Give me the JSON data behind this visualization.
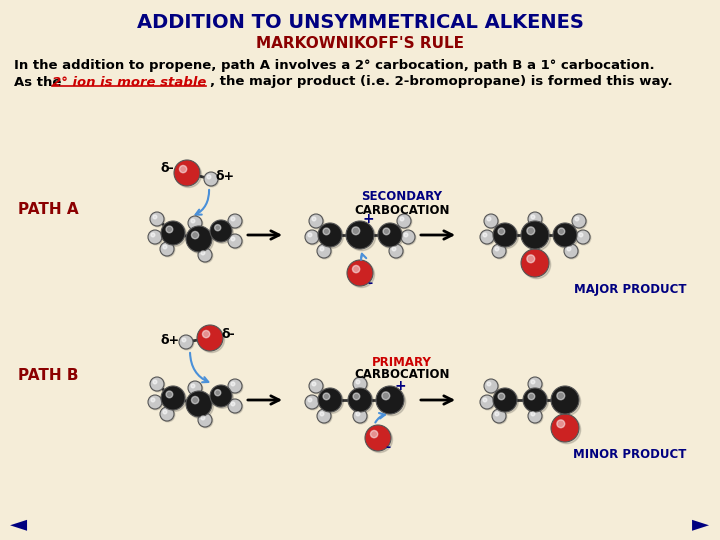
{
  "title": "ADDITION TO UNSYMMETRICAL ALKENES",
  "subtitle": "MARKOWNIKOFF'S RULE",
  "background_color": "#F5EDD8",
  "title_color": "#000080",
  "subtitle_color": "#8B0000",
  "text_color": "#000000",
  "highlight_color": "#CC0000",
  "path_color": "#8B0000",
  "label_color": "#000080",
  "arrow_color": "#4A90D9",
  "line1": "In the addition to propene, path A involves a 2° carbocation, path B a 1° carbocation.",
  "line2_plain1": "As the ",
  "line2_highlight": "2° ion is more stable",
  "line2_plain2": ", the major product (i.e. 2-bromopropane) is formed this way.",
  "path_a_label": "PATH A",
  "path_b_label": "PATH B",
  "secondary_label1": "SECONDARY",
  "secondary_label2": "CARBOCATION",
  "primary_label1": "PRIMARY",
  "primary_label2": "CARBOCATION",
  "major_label": "MAJOR PRODUCT",
  "minor_label": "MINOR PRODUCT",
  "delta_minus": "δ-",
  "delta_plus": "δ+",
  "nav_left": "◄",
  "nav_right": "►",
  "black_atom_color": "#1a1a1a",
  "gray_atom_color": "#c8c8c8",
  "red_atom_color": "#CC2222",
  "atom_edge_color": "#555555",
  "plus_color": "#000080",
  "minus_color": "#000080"
}
